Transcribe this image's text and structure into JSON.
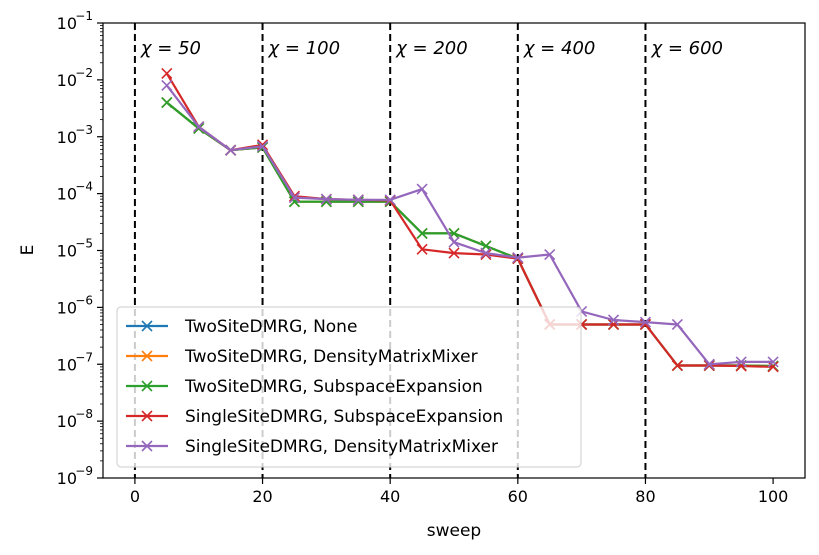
{
  "chart_data": {
    "type": "line",
    "title": "",
    "xlabel": "sweep",
    "ylabel": "E",
    "yscale": "log",
    "xlim": [
      -5,
      105
    ],
    "ylim": [
      1e-09,
      0.1
    ],
    "xticks": [
      0,
      20,
      40,
      60,
      80,
      100
    ],
    "xtick_labels": [
      "0",
      "20",
      "40",
      "60",
      "80",
      "100"
    ],
    "yticks": [
      1e-09,
      1e-08,
      1e-07,
      1e-06,
      1e-05,
      0.0001,
      0.001,
      0.01,
      0.1
    ],
    "ytick_labels": [
      {
        "base": "10",
        "exp": "−9"
      },
      {
        "base": "10",
        "exp": "−8"
      },
      {
        "base": "10",
        "exp": "−7"
      },
      {
        "base": "10",
        "exp": "−6"
      },
      {
        "base": "10",
        "exp": "−5"
      },
      {
        "base": "10",
        "exp": "−4"
      },
      {
        "base": "10",
        "exp": "−3"
      },
      {
        "base": "10",
        "exp": "−2"
      },
      {
        "base": "10",
        "exp": "−1"
      }
    ],
    "grid": false,
    "legend_position": "lower-left",
    "vlines": [
      {
        "x": 0,
        "label": "χ = 50"
      },
      {
        "x": 20,
        "label": "χ = 100"
      },
      {
        "x": 40,
        "label": "χ = 200"
      },
      {
        "x": 60,
        "label": "χ = 400"
      },
      {
        "x": 80,
        "label": "χ = 600"
      }
    ],
    "series": [
      {
        "name": "TwoSiteDMRG, None",
        "color": "#1f77b4",
        "x": [
          5,
          10,
          15,
          20,
          25,
          30,
          35,
          40,
          45,
          50,
          55,
          60,
          65,
          70,
          75,
          80,
          85,
          90,
          95,
          100
        ],
        "y": [
          0.004,
          0.0014,
          0.00058,
          0.00065,
          7.2e-05,
          7.2e-05,
          7.2e-05,
          7.2e-05,
          2e-05,
          2e-05,
          1.2e-05,
          7.2e-06,
          5e-07,
          5e-07,
          5e-07,
          5e-07,
          9.5e-08,
          9.5e-08,
          9.5e-08,
          9.3e-08
        ]
      },
      {
        "name": "TwoSiteDMRG, DensityMatrixMixer",
        "color": "#ff7f0e",
        "x": [
          5,
          10,
          15,
          20,
          25,
          30,
          35,
          40,
          45,
          50,
          55,
          60,
          65,
          70,
          75,
          80,
          85,
          90,
          95,
          100
        ],
        "y": [
          0.004,
          0.0014,
          0.00058,
          0.00065,
          7.2e-05,
          7.2e-05,
          7.2e-05,
          7.2e-05,
          2e-05,
          2e-05,
          1.2e-05,
          7.2e-06,
          5e-07,
          5e-07,
          5e-07,
          5e-07,
          9.5e-08,
          9.5e-08,
          9.5e-08,
          9.3e-08
        ]
      },
      {
        "name": "TwoSiteDMRG, SubspaceExpansion",
        "color": "#2ca02c",
        "x": [
          5,
          10,
          15,
          20,
          25,
          30,
          35,
          40,
          45,
          50,
          55,
          60,
          65,
          70,
          75,
          80,
          85,
          90,
          95,
          100
        ],
        "y": [
          0.004,
          0.0014,
          0.00058,
          0.00065,
          7.2e-05,
          7.2e-05,
          7.2e-05,
          7.2e-05,
          2e-05,
          2e-05,
          1.2e-05,
          7.2e-06,
          5e-07,
          5e-07,
          5e-07,
          5e-07,
          9.5e-08,
          9.5e-08,
          9.5e-08,
          9.3e-08
        ]
      },
      {
        "name": "SingleSiteDMRG, SubspaceExpansion",
        "color": "#d62728",
        "x": [
          5,
          10,
          15,
          20,
          25,
          30,
          35,
          40,
          45,
          50,
          55,
          60,
          65,
          70,
          75,
          80,
          85,
          90,
          95,
          100
        ],
        "y": [
          0.013,
          0.0015,
          0.00058,
          0.00072,
          9e-05,
          8e-05,
          7.8e-05,
          7.6e-05,
          1.05e-05,
          9e-06,
          8.5e-06,
          7.2e-06,
          5e-07,
          5e-07,
          5e-07,
          5e-07,
          9.5e-08,
          9.5e-08,
          9.3e-08,
          9e-08
        ]
      },
      {
        "name": "SingleSiteDMRG, DensityMatrixMixer",
        "color": "#9467bd",
        "x": [
          5,
          10,
          15,
          20,
          25,
          30,
          35,
          40,
          45,
          50,
          55,
          60,
          65,
          70,
          75,
          80,
          85,
          90,
          95,
          100
        ],
        "y": [
          0.008,
          0.0015,
          0.00058,
          0.00068,
          8.5e-05,
          8e-05,
          7.8e-05,
          7.8e-05,
          0.00012,
          1.4e-05,
          9e-06,
          7.5e-06,
          8.5e-06,
          8.5e-07,
          6e-07,
          5.5e-07,
          5e-07,
          1e-07,
          1.1e-07,
          1.1e-07
        ]
      }
    ]
  }
}
